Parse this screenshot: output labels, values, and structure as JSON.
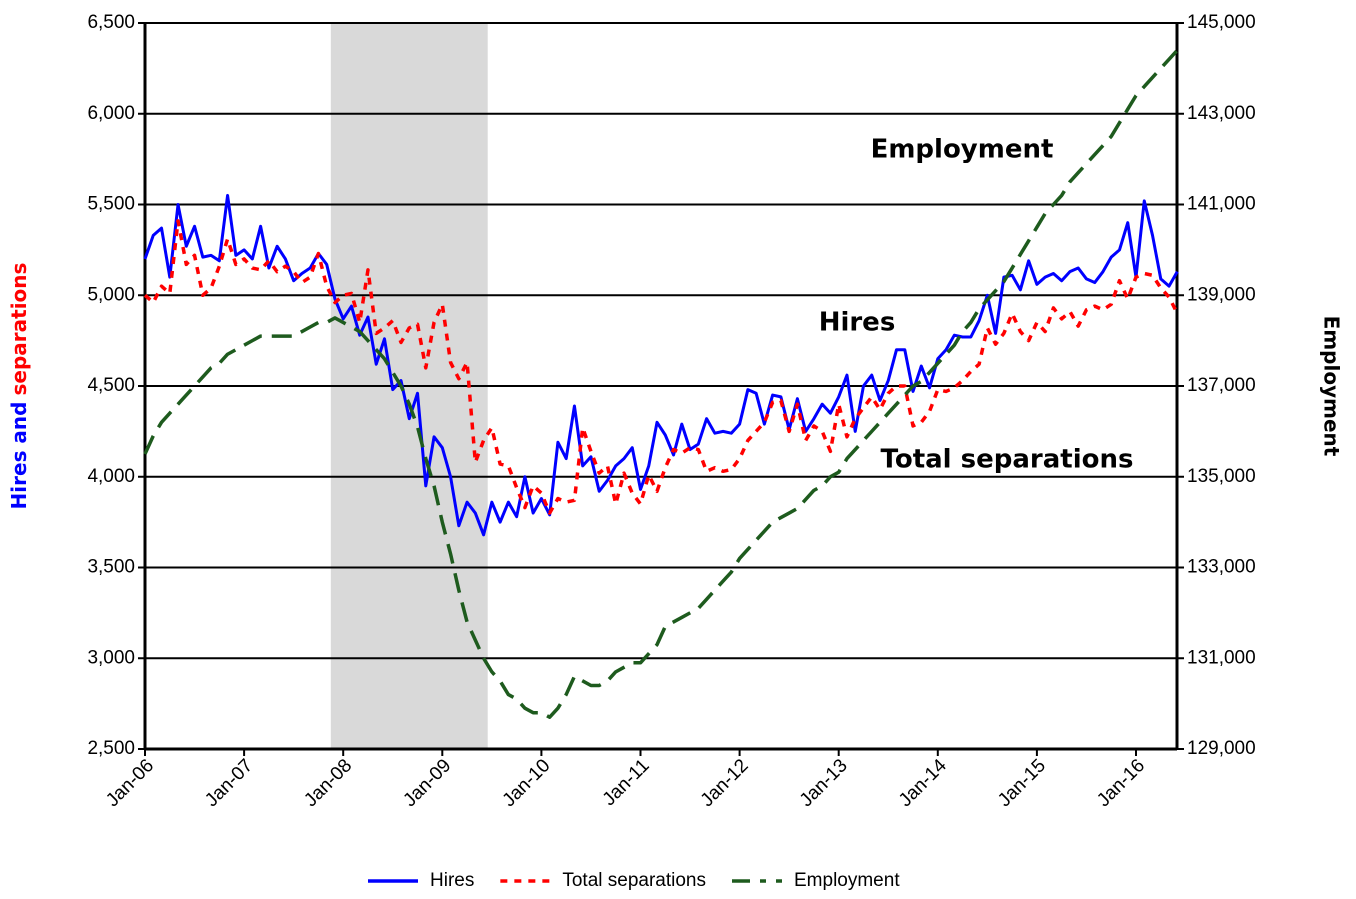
{
  "chart_data": {
    "type": "line",
    "categories": [
      "Jan-06",
      null,
      null,
      null,
      null,
      null,
      null,
      null,
      null,
      null,
      null,
      null,
      "Jan-07",
      null,
      null,
      null,
      null,
      null,
      null,
      null,
      null,
      null,
      null,
      null,
      "Jan-08",
      null,
      null,
      null,
      null,
      null,
      null,
      null,
      null,
      null,
      null,
      null,
      "Jan-09",
      null,
      null,
      null,
      null,
      null,
      null,
      null,
      null,
      null,
      null,
      null,
      "Jan-10",
      null,
      null,
      null,
      null,
      null,
      null,
      null,
      null,
      null,
      null,
      null,
      "Jan-11",
      null,
      null,
      null,
      null,
      null,
      null,
      null,
      null,
      null,
      null,
      null,
      "Jan-12",
      null,
      null,
      null,
      null,
      null,
      null,
      null,
      null,
      null,
      null,
      null,
      "Jan-13",
      null,
      null,
      null,
      null,
      null,
      null,
      null,
      null,
      null,
      null,
      null,
      "Jan-14",
      null,
      null,
      null,
      null,
      null,
      null,
      null,
      null,
      null,
      null,
      null,
      "Jan-15",
      null,
      null,
      null,
      null,
      null,
      null,
      null,
      null,
      null,
      null,
      null,
      "Jan-16",
      null,
      null,
      null,
      null,
      null
    ],
    "series": [
      {
        "name": "Hires",
        "color": "#0000ff",
        "dash": "solid",
        "values": [
          5200,
          5330,
          5370,
          5100,
          5500,
          5270,
          5380,
          5210,
          5220,
          5190,
          5550,
          5220,
          5250,
          5200,
          5380,
          5150,
          5270,
          5200,
          5080,
          5120,
          5150,
          5230,
          5170,
          4980,
          4870,
          4940,
          4780,
          4880,
          4620,
          4760,
          4480,
          4530,
          4320,
          4460,
          3950,
          4220,
          4160,
          4000,
          3730,
          3860,
          3800,
          3680,
          3860,
          3750,
          3860,
          3780,
          4000,
          3800,
          3880,
          3790,
          4190,
          4100,
          4390,
          4060,
          4110,
          3920,
          3980,
          4060,
          4100,
          4160,
          3930,
          4060,
          4300,
          4230,
          4120,
          4290,
          4150,
          4180,
          4320,
          4240,
          4250,
          4240,
          4290,
          4480,
          4460,
          4290,
          4450,
          4440,
          4260,
          4430,
          4250,
          4320,
          4400,
          4350,
          4440,
          4560,
          4250,
          4500,
          4560,
          4420,
          4530,
          4700,
          4700,
          4470,
          4610,
          4490,
          4650,
          4700,
          4780,
          4770,
          4770,
          4860,
          5000,
          4790,
          5100,
          5110,
          5030,
          5190,
          5060,
          5100,
          5120,
          5080,
          5130,
          5150,
          5090,
          5070,
          5130,
          5210,
          5250,
          5400,
          5100,
          5520,
          5330,
          5090,
          5050,
          5130
        ]
      },
      {
        "name": "Total separations",
        "color": "#ff0000",
        "dash": "short",
        "values": [
          5000,
          4960,
          5050,
          5010,
          5410,
          5170,
          5220,
          5000,
          5040,
          5160,
          5310,
          5170,
          5200,
          5150,
          5140,
          5190,
          5130,
          5160,
          5130,
          5070,
          5100,
          5230,
          5050,
          4960,
          5000,
          5010,
          4850,
          5140,
          4790,
          4820,
          4860,
          4740,
          4820,
          4840,
          4600,
          4850,
          4950,
          4630,
          4540,
          4630,
          4080,
          4200,
          4270,
          4070,
          4060,
          3940,
          3830,
          3950,
          3910,
          3800,
          3880,
          3860,
          3870,
          4270,
          4140,
          4020,
          4060,
          3850,
          4020,
          3910,
          3850,
          4010,
          3920,
          4050,
          4150,
          4130,
          4160,
          4150,
          4030,
          4050,
          4030,
          4040,
          4100,
          4200,
          4250,
          4300,
          4410,
          4420,
          4250,
          4400,
          4200,
          4280,
          4250,
          4140,
          4400,
          4220,
          4320,
          4380,
          4440,
          4370,
          4460,
          4500,
          4500,
          4280,
          4300,
          4360,
          4480,
          4470,
          4490,
          4530,
          4580,
          4620,
          4820,
          4730,
          4790,
          4900,
          4800,
          4750,
          4850,
          4800,
          4930,
          4870,
          4910,
          4830,
          4920,
          4940,
          4920,
          4950,
          5080,
          4980,
          5100,
          5120,
          5110,
          5040,
          4990,
          4900
        ]
      },
      {
        "name": "Employment",
        "color": "#1e5b1e",
        "dash": "long",
        "axis": "y2",
        "values": [
          135500,
          135900,
          136200,
          136400,
          136600,
          136800,
          137000,
          137200,
          137400,
          137500,
          137700,
          137800,
          137900,
          138000,
          138100,
          138100,
          138100,
          138100,
          138100,
          138200,
          138300,
          138400,
          138400,
          138500,
          138400,
          138300,
          138200,
          138000,
          137800,
          137600,
          137300,
          137000,
          136600,
          136100,
          135400,
          134800,
          134000,
          133300,
          132500,
          131800,
          131400,
          131000,
          130700,
          130500,
          130200,
          130100,
          129900,
          129800,
          129800,
          129700,
          129900,
          130200,
          130600,
          130500,
          130400,
          130400,
          130500,
          130700,
          130800,
          130900,
          130900,
          131100,
          131300,
          131700,
          131800,
          131900,
          132000,
          132100,
          132300,
          132500,
          132700,
          132900,
          133200,
          133400,
          133600,
          133800,
          134000,
          134100,
          134200,
          134300,
          134500,
          134700,
          134800,
          135000,
          135100,
          135400,
          135600,
          135800,
          136000,
          136200,
          136400,
          136600,
          136800,
          137000,
          137100,
          137300,
          137500,
          137700,
          137900,
          138200,
          138400,
          138700,
          138900,
          139100,
          139300,
          139600,
          139900,
          140200,
          140500,
          140800,
          141000,
          141200,
          141500,
          141700,
          141900,
          142100,
          142300,
          142500,
          142800,
          143100,
          143400,
          143600,
          143800,
          144000,
          144200,
          144400
        ]
      }
    ],
    "ylim": [
      2500,
      6500
    ],
    "yticks": [
      {
        "value": 2500,
        "label": "2,500"
      },
      {
        "value": 3000,
        "label": "3,000"
      },
      {
        "value": 3500,
        "label": "3,500"
      },
      {
        "value": 4000,
        "label": "4,000"
      },
      {
        "value": 4500,
        "label": "4,500"
      },
      {
        "value": 5000,
        "label": "5,000"
      },
      {
        "value": 5500,
        "label": "5,500"
      },
      {
        "value": 6000,
        "label": "6,000"
      },
      {
        "value": 6500,
        "label": "6,500"
      }
    ],
    "y2lim": [
      129000,
      145000
    ],
    "y2ticks": [
      {
        "value": 129000,
        "label": "129,000"
      },
      {
        "value": 131000,
        "label": "131,000"
      },
      {
        "value": 133000,
        "label": "133,000"
      },
      {
        "value": 135000,
        "label": "135,000"
      },
      {
        "value": 137000,
        "label": "137,000"
      },
      {
        "value": 139000,
        "label": "139,000"
      },
      {
        "value": 141000,
        "label": "141,000"
      },
      {
        "value": 143000,
        "label": "143,000"
      },
      {
        "value": 145000,
        "label": "145,000"
      }
    ],
    "ylabel_parts": [
      {
        "text": "Hires and",
        "color": "#0000ff"
      },
      {
        "text": "separations",
        "color": "#ff0000"
      }
    ],
    "y2label": "Employment",
    "y2label_color": "#1e5b1e",
    "shaded_range": [
      23,
      42
    ],
    "shade_color": "#d9d9d9",
    "grid": true,
    "legend": "bottom",
    "annotations": [
      {
        "text": "Employment",
        "color": "#1e5b1e"
      },
      {
        "text": "Hires",
        "color": "#0000ff"
      },
      {
        "text": "Total separations",
        "color": "#ff0000"
      }
    ]
  }
}
